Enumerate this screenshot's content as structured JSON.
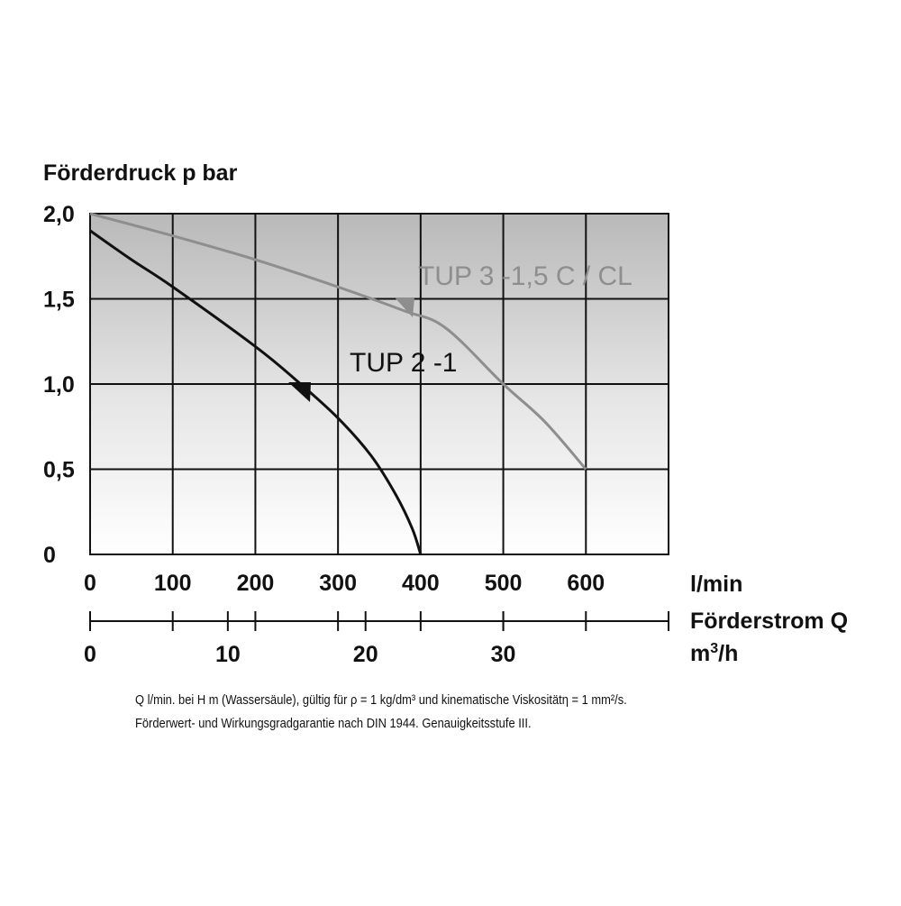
{
  "chart_data": {
    "type": "line",
    "ylabel": "Förderdruck p bar",
    "x_unit_lmin": "l/min",
    "xlabel": "Förderstrom Q",
    "x_unit_m3h_base": "m",
    "x_unit_m3h_sup": "3",
    "x_unit_m3h_tail": "/h",
    "y_ticks": [
      "0",
      "0,5",
      "1,0",
      "1,5",
      "2,0"
    ],
    "y_tick_values": [
      0,
      0.5,
      1.0,
      1.5,
      2.0
    ],
    "ylim": [
      0,
      2.0
    ],
    "x_ticks_lmin": [
      "0",
      "100",
      "200",
      "300",
      "400",
      "500",
      "600"
    ],
    "x_tick_values_lmin": [
      0,
      100,
      200,
      300,
      400,
      500,
      600
    ],
    "x_ticks_m3h": [
      "0",
      "10",
      "20",
      "30"
    ],
    "x_tick_values_m3h": [
      0,
      10,
      20,
      30
    ],
    "xlim_lmin": [
      0,
      700
    ],
    "grid": true,
    "series": [
      {
        "name": "TUP 3 -1,5 C / CL",
        "color": "#8e8e8e",
        "x": [
          0,
          100,
          200,
          300,
          380,
          430,
          500,
          550,
          600
        ],
        "y": [
          2.0,
          1.87,
          1.73,
          1.57,
          1.43,
          1.33,
          1.0,
          0.78,
          0.5
        ]
      },
      {
        "name": "TUP 2 -1",
        "color": "#111111",
        "x": [
          0,
          50,
          100,
          200,
          250,
          300,
          340,
          370,
          390,
          400
        ],
        "y": [
          1.9,
          1.73,
          1.57,
          1.22,
          1.02,
          0.8,
          0.58,
          0.35,
          0.15,
          0
        ]
      }
    ]
  },
  "footnote": {
    "line1": "Q l/min. bei H m (Wassersäule), gültig für ρ = 1 kg/dm³ und kinematische Viskositätη = 1 mm²/s.",
    "line2": "Förderwert- und Wirkungsgradgarantie nach DIN 1944. Genauigkeitsstufe III."
  }
}
